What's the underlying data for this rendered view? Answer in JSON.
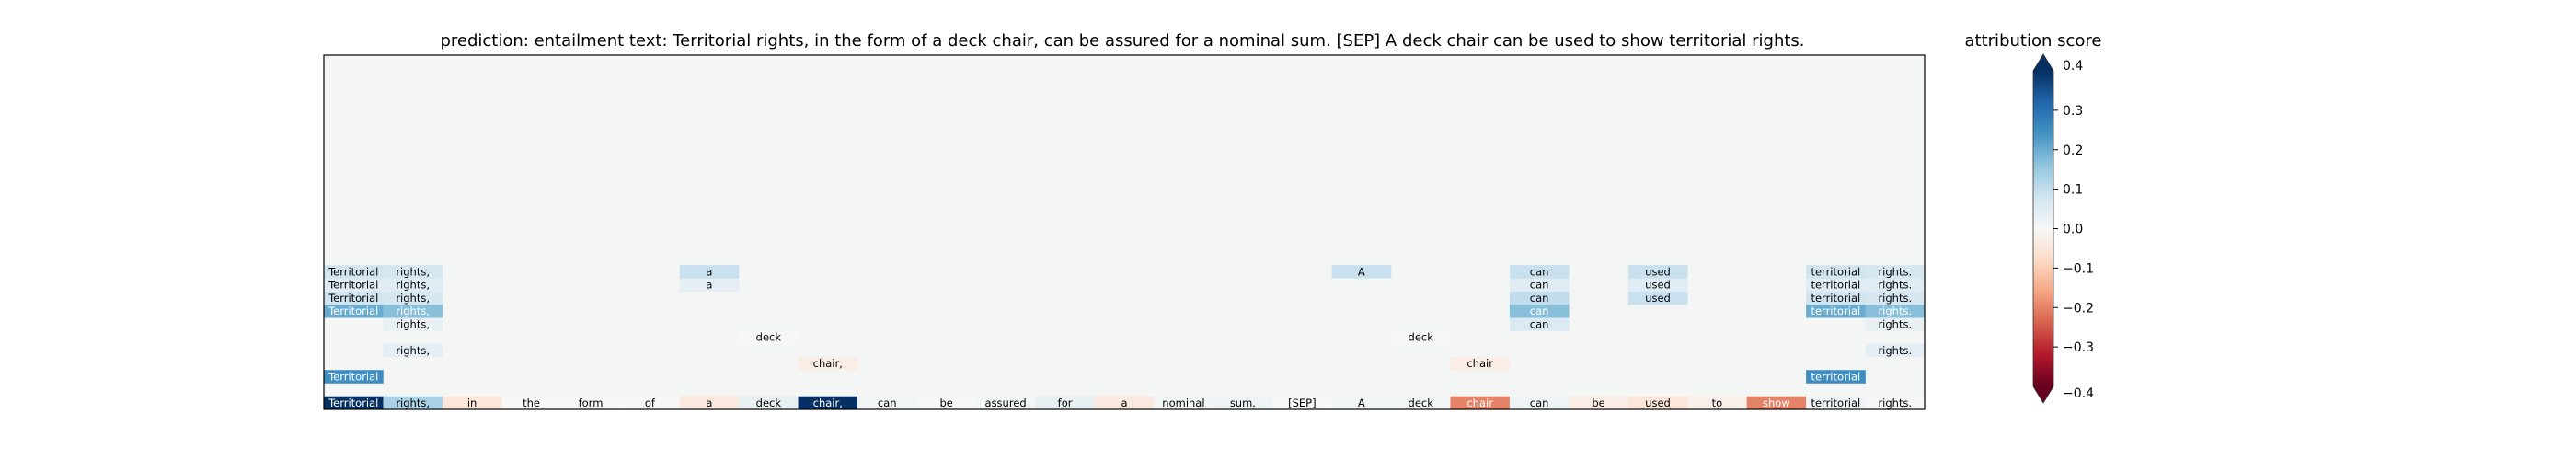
{
  "chart_data": {
    "type": "heatmap",
    "title": "prediction:  entailment     text:  Territorial rights, in the form of a deck chair, can be assured for a nominal sum. [SEP] A deck chair can be used to show territorial rights.",
    "tokens": [
      "Territorial",
      "rights,",
      "in",
      "the",
      "form",
      "of",
      "a",
      "deck",
      "chair,",
      "can",
      "be",
      "assured",
      "for",
      "a",
      "nominal",
      "sum.",
      "[SEP]",
      "A",
      "deck",
      "chair",
      "can",
      "be",
      "used",
      "to",
      "show",
      "territorial",
      "rights."
    ],
    "layers": 27,
    "bottom_row_scores": [
      0.4,
      0.13,
      -0.05,
      0.0,
      0.0,
      0.0,
      -0.04,
      0.03,
      0.4,
      0.01,
      0.0,
      0.01,
      0.03,
      -0.04,
      0.01,
      0.02,
      0.0,
      0.01,
      0.01,
      -0.2,
      0.02,
      -0.03,
      -0.05,
      -0.02,
      -0.2,
      0.02,
      0.0
    ],
    "cells": [
      {
        "row": 24,
        "col": 0,
        "label": "Territorial",
        "score": 0.25
      },
      {
        "row": 24,
        "col": 25,
        "label": "territorial",
        "score": 0.25
      },
      {
        "row": 23,
        "col": 8,
        "label": "chair,",
        "score": -0.03
      },
      {
        "row": 23,
        "col": 19,
        "label": "chair",
        "score": -0.03
      },
      {
        "row": 22,
        "col": 1,
        "label": "rights,",
        "score": 0.04
      },
      {
        "row": 22,
        "col": 26,
        "label": "rights.",
        "score": 0.04
      },
      {
        "row": 21,
        "col": 7,
        "label": "deck",
        "score": 0.0
      },
      {
        "row": 21,
        "col": 18,
        "label": "deck",
        "score": 0.0
      },
      {
        "row": 20,
        "col": 1,
        "label": "rights,",
        "score": 0.03
      },
      {
        "row": 20,
        "col": 20,
        "label": "can",
        "score": 0.06
      },
      {
        "row": 20,
        "col": 26,
        "label": "rights.",
        "score": 0.03
      },
      {
        "row": 19,
        "col": 0,
        "label": "Territorial",
        "score": 0.2
      },
      {
        "row": 19,
        "col": 1,
        "label": "rights,",
        "score": 0.17
      },
      {
        "row": 19,
        "col": 20,
        "label": "can",
        "score": 0.17
      },
      {
        "row": 19,
        "col": 25,
        "label": "territorial",
        "score": 0.2
      },
      {
        "row": 19,
        "col": 26,
        "label": "rights.",
        "score": 0.17
      },
      {
        "row": 18,
        "col": 0,
        "label": "Territorial",
        "score": 0.08
      },
      {
        "row": 18,
        "col": 1,
        "label": "rights,",
        "score": 0.07
      },
      {
        "row": 18,
        "col": 20,
        "label": "can",
        "score": 0.1
      },
      {
        "row": 18,
        "col": 22,
        "label": "used",
        "score": 0.09
      },
      {
        "row": 18,
        "col": 25,
        "label": "territorial",
        "score": 0.08
      },
      {
        "row": 18,
        "col": 26,
        "label": "rights.",
        "score": 0.07
      },
      {
        "row": 17,
        "col": 0,
        "label": "Territorial",
        "score": 0.05
      },
      {
        "row": 17,
        "col": 1,
        "label": "rights,",
        "score": 0.05
      },
      {
        "row": 17,
        "col": 6,
        "label": "a",
        "score": 0.04
      },
      {
        "row": 17,
        "col": 20,
        "label": "can",
        "score": 0.05
      },
      {
        "row": 17,
        "col": 22,
        "label": "used",
        "score": 0.05
      },
      {
        "row": 17,
        "col": 25,
        "label": "territorial",
        "score": 0.05
      },
      {
        "row": 17,
        "col": 26,
        "label": "rights.",
        "score": 0.05
      },
      {
        "row": 16,
        "col": 0,
        "label": "Territorial",
        "score": 0.08
      },
      {
        "row": 16,
        "col": 1,
        "label": "rights,",
        "score": 0.07
      },
      {
        "row": 16,
        "col": 6,
        "label": "a",
        "score": 0.09
      },
      {
        "row": 16,
        "col": 17,
        "label": "A",
        "score": 0.09
      },
      {
        "row": 16,
        "col": 20,
        "label": "can",
        "score": 0.09
      },
      {
        "row": 16,
        "col": 22,
        "label": "used",
        "score": 0.09
      },
      {
        "row": 16,
        "col": 25,
        "label": "territorial",
        "score": 0.08
      },
      {
        "row": 16,
        "col": 26,
        "label": "rights.",
        "score": 0.07
      }
    ],
    "colorbar": {
      "label": "attribution score",
      "vmin": -0.4,
      "vmax": 0.4,
      "ticks": [
        0.3,
        0.2,
        0.1,
        0.0,
        -0.1,
        -0.2,
        -0.3
      ],
      "tick_labels": [
        "0.3",
        "0.2",
        "0.1",
        "0.0",
        "−0.1",
        "−0.2",
        "−0.3"
      ],
      "extra_tick_labels": [
        "0.4",
        "−0.4"
      ],
      "extend": "both",
      "colormap": "RdBu"
    }
  }
}
